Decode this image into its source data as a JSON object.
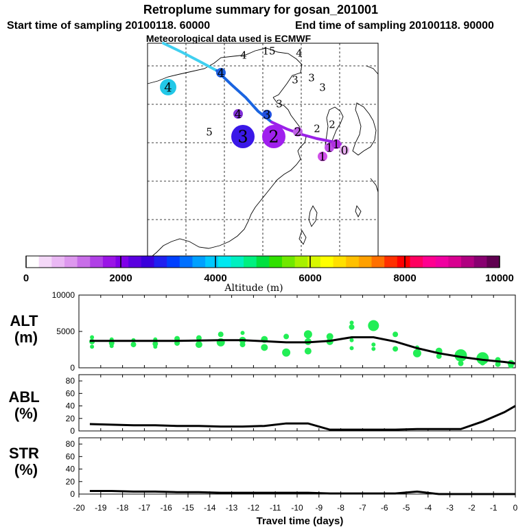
{
  "header": {
    "title": "Retroplume summary for gosan_201001",
    "start_label": "Start time of sampling 20100118. 60000",
    "end_label": "End time of sampling 20100118. 90000",
    "met_label": "Meteorological data used is ECMWF"
  },
  "colorbar": {
    "title": "Altitude (m)",
    "ticks": [
      "0",
      "2000",
      "4000",
      "6000",
      "8000",
      "10000"
    ],
    "colors": [
      "#ffffff",
      "#f4d8f8",
      "#eab8f4",
      "#dd98ee",
      "#c86ee8",
      "#b040e6",
      "#9a14e6",
      "#8000e8",
      "#5a00e0",
      "#3a00dc",
      "#2020f0",
      "#0040ff",
      "#0070ff",
      "#00a0ff",
      "#00c8ff",
      "#00e8f0",
      "#00f0c0",
      "#00f080",
      "#00e040",
      "#30e000",
      "#70e800",
      "#a8f000",
      "#d8f800",
      "#ffff00",
      "#ffe000",
      "#ffc000",
      "#ffa000",
      "#ff7000",
      "#ff3000",
      "#ff0000",
      "#ff0060",
      "#ff0090",
      "#f000a0",
      "#d80090",
      "#b00080",
      "#880070",
      "#600050"
    ]
  },
  "map": {
    "trajectory_points": [
      {
        "label": "4",
        "color": "#22c8e8",
        "size": "large"
      },
      {
        "label": "4",
        "color": "#3a7adc",
        "size": "small"
      },
      {
        "label": "15",
        "color": "#2a8ae0",
        "size": "small"
      },
      {
        "label": "4",
        "color": "#9aa8e8",
        "size": "small"
      },
      {
        "label": "4",
        "color": "#2060e0",
        "size": "medium"
      },
      {
        "label": "3",
        "color": "#6020e0",
        "size": "small"
      },
      {
        "label": "3",
        "color": "#b090e8",
        "size": "small"
      },
      {
        "label": "3",
        "color": "#c8a0e8",
        "size": "small"
      },
      {
        "label": "3",
        "color": "#3030e0",
        "size": "small"
      },
      {
        "label": "4",
        "color": "#8030d8",
        "size": "medium"
      },
      {
        "label": "3",
        "color": "#2050e0",
        "size": "medium"
      },
      {
        "label": "5",
        "color": "#c0c8f0",
        "size": "small"
      },
      {
        "label": "3",
        "color": "#3a18e8",
        "size": "xlarge"
      },
      {
        "label": "2",
        "color": "#a020ee",
        "size": "xlarge"
      },
      {
        "label": "2",
        "color": "#c060e8",
        "size": "medium"
      },
      {
        "label": "2",
        "color": "#c8a0ec",
        "size": "small"
      },
      {
        "label": "2",
        "color": "#e080f0",
        "size": "small"
      },
      {
        "label": "1",
        "color": "#d050e8",
        "size": "medium"
      },
      {
        "label": "1",
        "color": "#c050e8",
        "size": "medium"
      },
      {
        "label": "1",
        "color": "#b030e0",
        "size": "medium"
      },
      {
        "label": "0",
        "color": "#e8b0f0",
        "size": "medium"
      }
    ],
    "path_colors": [
      "#40d0f0",
      "#1a64e0",
      "#9a20e8"
    ]
  },
  "chart_data": [
    {
      "type": "line",
      "panel": "ALT",
      "ylabel": "ALT\n(m)",
      "xlabel": "Travel time (days)",
      "ylim": [
        0,
        10000
      ],
      "yticks": [
        "0",
        "5000",
        "10000"
      ],
      "x": [
        -19.5,
        -18.5,
        -17.5,
        -16.5,
        -15.5,
        -14.5,
        -13.5,
        -12.5,
        -11.5,
        -10.5,
        -9.5,
        -8.5,
        -7.5,
        -6.5,
        -5.5,
        -4.5,
        -3.5,
        -2.5,
        -1.5,
        -0.5,
        0
      ],
      "median": [
        3700,
        3700,
        3700,
        3700,
        3700,
        3750,
        3800,
        3800,
        3650,
        3500,
        3500,
        3700,
        4200,
        4200,
        3600,
        2700,
        2000,
        1500,
        1100,
        800,
        600
      ],
      "scatter": {
        "color": "#22ee55",
        "points": [
          {
            "x": -19.4,
            "y": 4200,
            "s": 3
          },
          {
            "x": -19.4,
            "y": 3600,
            "s": 4
          },
          {
            "x": -19.4,
            "y": 2900,
            "s": 3
          },
          {
            "x": -18.5,
            "y": 3900,
            "s": 3
          },
          {
            "x": -18.5,
            "y": 3400,
            "s": 4
          },
          {
            "x": -18.5,
            "y": 3000,
            "s": 3
          },
          {
            "x": -17.5,
            "y": 3800,
            "s": 3
          },
          {
            "x": -17.5,
            "y": 3200,
            "s": 4
          },
          {
            "x": -16.5,
            "y": 3900,
            "s": 3
          },
          {
            "x": -16.5,
            "y": 3300,
            "s": 4
          },
          {
            "x": -16.5,
            "y": 2900,
            "s": 3
          },
          {
            "x": -15.5,
            "y": 4000,
            "s": 4
          },
          {
            "x": -15.5,
            "y": 3400,
            "s": 4
          },
          {
            "x": -14.5,
            "y": 4100,
            "s": 4
          },
          {
            "x": -14.5,
            "y": 3200,
            "s": 5
          },
          {
            "x": -13.5,
            "y": 4600,
            "s": 4
          },
          {
            "x": -13.5,
            "y": 3500,
            "s": 6
          },
          {
            "x": -12.5,
            "y": 4800,
            "s": 3
          },
          {
            "x": -12.5,
            "y": 3800,
            "s": 5
          },
          {
            "x": -12.5,
            "y": 3200,
            "s": 4
          },
          {
            "x": -11.5,
            "y": 3900,
            "s": 5
          },
          {
            "x": -11.5,
            "y": 2800,
            "s": 5
          },
          {
            "x": -10.5,
            "y": 4300,
            "s": 4
          },
          {
            "x": -10.5,
            "y": 2100,
            "s": 6
          },
          {
            "x": -9.5,
            "y": 4600,
            "s": 6
          },
          {
            "x": -9.5,
            "y": 3600,
            "s": 5
          },
          {
            "x": -9.5,
            "y": 2300,
            "s": 5
          },
          {
            "x": -8.5,
            "y": 4300,
            "s": 5
          },
          {
            "x": -8.5,
            "y": 3600,
            "s": 5
          },
          {
            "x": -7.5,
            "y": 6200,
            "s": 3
          },
          {
            "x": -7.5,
            "y": 5600,
            "s": 4
          },
          {
            "x": -7.5,
            "y": 3800,
            "s": 3
          },
          {
            "x": -7.5,
            "y": 2700,
            "s": 3
          },
          {
            "x": -6.5,
            "y": 5800,
            "s": 8
          },
          {
            "x": -6.5,
            "y": 3200,
            "s": 3
          },
          {
            "x": -6.5,
            "y": 2600,
            "s": 3
          },
          {
            "x": -5.5,
            "y": 4600,
            "s": 4
          },
          {
            "x": -5.5,
            "y": 2600,
            "s": 4
          },
          {
            "x": -4.5,
            "y": 2800,
            "s": 3
          },
          {
            "x": -4.5,
            "y": 2000,
            "s": 6
          },
          {
            "x": -3.5,
            "y": 2300,
            "s": 5
          },
          {
            "x": -3.5,
            "y": 1600,
            "s": 4
          },
          {
            "x": -2.5,
            "y": 1700,
            "s": 9
          },
          {
            "x": -2.5,
            "y": 600,
            "s": 4
          },
          {
            "x": -1.5,
            "y": 1300,
            "s": 9
          },
          {
            "x": -1.5,
            "y": 700,
            "s": 4
          },
          {
            "x": -0.8,
            "y": 1100,
            "s": 4
          },
          {
            "x": -0.8,
            "y": 500,
            "s": 4
          },
          {
            "x": -0.2,
            "y": 600,
            "s": 5
          },
          {
            "x": -0.2,
            "y": 300,
            "s": 4
          }
        ]
      }
    },
    {
      "type": "line",
      "panel": "ABL",
      "ylabel": "ABL\n(%)",
      "ylim": [
        0,
        90
      ],
      "yticks": [
        "0",
        "20",
        "40",
        "60",
        "80"
      ],
      "x": [
        -19.5,
        -18.5,
        -17.5,
        -16.5,
        -15.5,
        -14.5,
        -13.5,
        -12.5,
        -11.5,
        -10.5,
        -9.5,
        -8.5,
        -7.5,
        -6.5,
        -5.5,
        -4.5,
        -3.5,
        -2.5,
        -1.5,
        -0.5,
        0
      ],
      "values": [
        11,
        10,
        9,
        9,
        8,
        8,
        7,
        7,
        8,
        12,
        12,
        2,
        2,
        2,
        2,
        3,
        3,
        3,
        15,
        30,
        40
      ]
    },
    {
      "type": "line",
      "panel": "STR",
      "ylabel": "STR\n(%)",
      "ylim": [
        0,
        90
      ],
      "yticks": [
        "0",
        "20",
        "40",
        "60",
        "80"
      ],
      "x": [
        -19.5,
        -18.5,
        -17.5,
        -16.5,
        -15.5,
        -14.5,
        -13.5,
        -12.5,
        -11.5,
        -10.5,
        -9.5,
        -8.5,
        -7.5,
        -6.5,
        -5.5,
        -4.5,
        -3.5,
        -2.5,
        -1.5,
        -0.5,
        0
      ],
      "values": [
        5,
        5,
        4,
        4,
        3,
        3,
        2,
        2,
        2,
        2,
        2,
        1,
        1,
        1,
        1,
        4,
        0,
        0,
        0,
        0,
        0
      ],
      "xlim": [
        -20,
        0
      ],
      "xticks": [
        "-20",
        "-19",
        "-18",
        "-17",
        "-16",
        "-15",
        "-14",
        "-13",
        "-12",
        "-11",
        "-10",
        "-9",
        "-8",
        "-7",
        "-6",
        "-5",
        "-4",
        "-3",
        "-2",
        "-1",
        "0"
      ]
    }
  ]
}
